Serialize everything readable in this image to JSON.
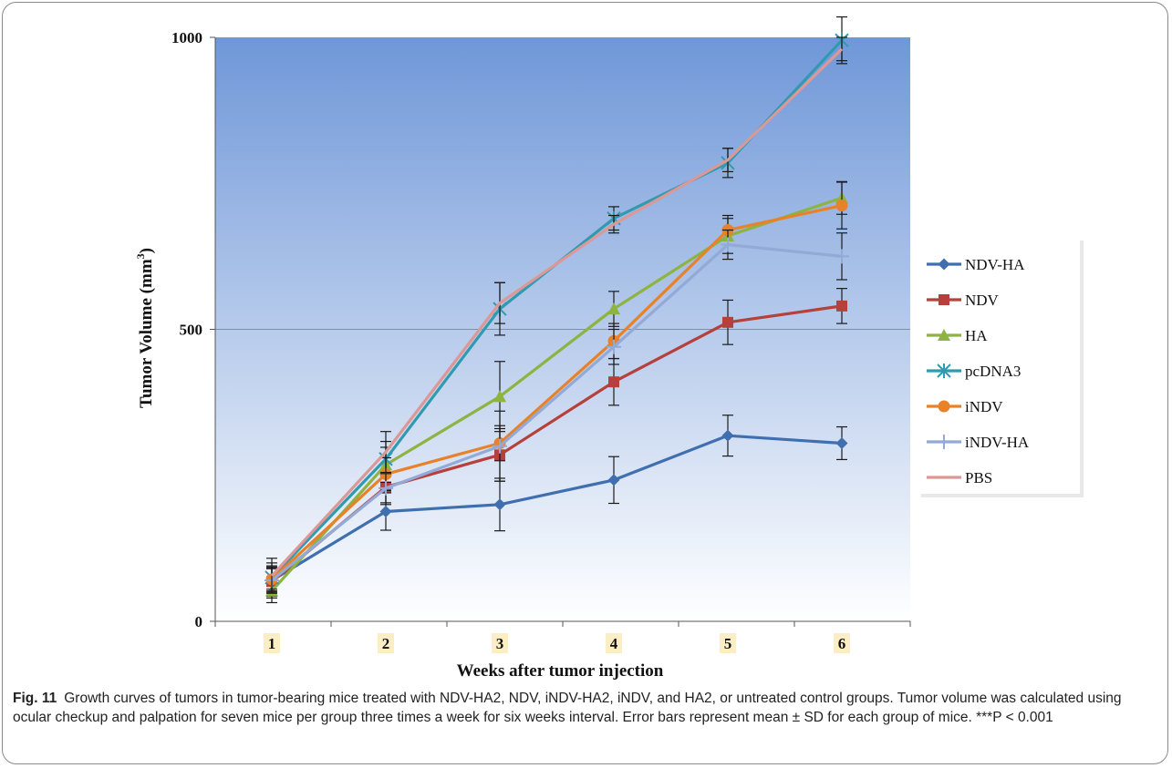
{
  "chart_data": {
    "type": "line",
    "ylabel": "Tumor Volume (mm",
    "ylabel_sup": "3",
    "ylabel_end": ")",
    "xlabel": "Weeks after tumor  injection",
    "categories": [
      "1",
      "2",
      "3",
      "4",
      "5",
      "6"
    ],
    "ylim": [
      0,
      1000
    ],
    "yticks": [
      "0",
      "500",
      "1000"
    ],
    "grid": "horizontal at 500",
    "legend_position": "right",
    "error_bars": true,
    "series": [
      {
        "name": "NDV-HA",
        "color": "#3f6fae",
        "marker": "diamond",
        "values": [
          70,
          188,
          200,
          242,
          318,
          305
        ],
        "errors": [
          30,
          32,
          45,
          40,
          35,
          28
        ]
      },
      {
        "name": "NDV",
        "color": "#b5403c",
        "marker": "square",
        "values": [
          68,
          230,
          285,
          410,
          512,
          540
        ],
        "errors": [
          25,
          30,
          45,
          40,
          38,
          30
        ]
      },
      {
        "name": "HA",
        "color": "#8db340",
        "marker": "triangle",
        "values": [
          52,
          268,
          385,
          535,
          660,
          725
        ],
        "errors": [
          20,
          30,
          60,
          30,
          30,
          28
        ]
      },
      {
        "name": "pcDNA3",
        "color": "#2f9ab0",
        "marker": "asterisk",
        "values": [
          75,
          278,
          535,
          690,
          785,
          995
        ],
        "errors": [
          20,
          30,
          45,
          20,
          25,
          40
        ]
      },
      {
        "name": "iNDV",
        "color": "#e8822a",
        "marker": "circle",
        "values": [
          72,
          252,
          305,
          480,
          670,
          712
        ],
        "errors": [
          20,
          28,
          30,
          30,
          25,
          40
        ]
      },
      {
        "name": "iNDV-HA",
        "color": "#93a9d6",
        "marker": "plus",
        "values": [
          70,
          228,
          300,
          470,
          645,
          625
        ],
        "errors": [
          20,
          25,
          60,
          30,
          25,
          40
        ]
      },
      {
        "name": "PBS",
        "color": "#dc9896",
        "marker": "none",
        "values": [
          78,
          290,
          545,
          680,
          790,
          980
        ],
        "errors": [
          30,
          35,
          35,
          15,
          20,
          20
        ]
      }
    ]
  },
  "caption": {
    "label": "Fig. 11",
    "text": "Growth curves of tumors in tumor-bearing mice treated with NDV-HA2, NDV, iNDV-HA2, iNDV, and HA2, or untreated control groups. Tumor volume was calculated using ocular checkup and palpation for seven mice per group three times a week for six weeks interval. Error bars represent mean ± SD for each group of mice. ***P < 0.001"
  },
  "colors": {
    "plot_bg_top": "#6f97d8",
    "plot_bg_bottom": "#ffffff",
    "tick_label_bg": "#fbeec4",
    "axis": "#555555"
  }
}
